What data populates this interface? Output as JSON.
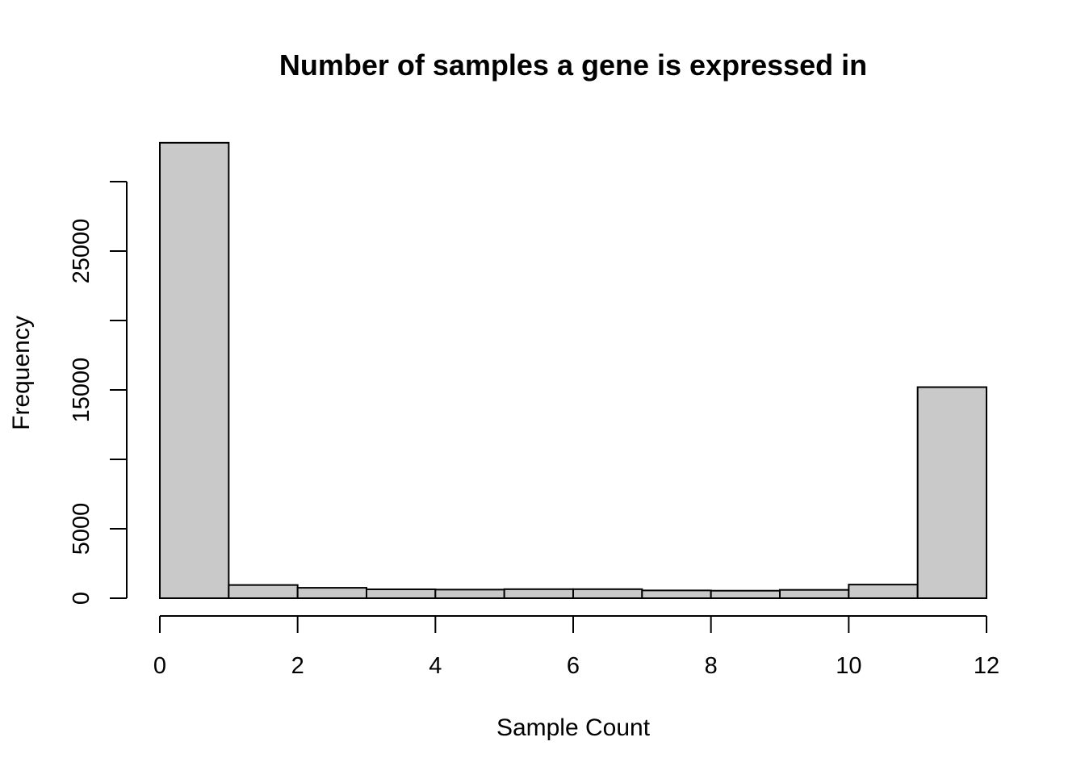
{
  "chart_data": {
    "type": "bar",
    "title": "Number of samples a gene is expressed in",
    "xlabel": "Sample Count",
    "ylabel": "Frequency",
    "bin_edges": [
      0,
      1,
      2,
      3,
      4,
      5,
      6,
      7,
      8,
      9,
      10,
      11,
      12
    ],
    "values": [
      32800,
      950,
      750,
      640,
      620,
      650,
      650,
      560,
      540,
      600,
      980,
      15200
    ],
    "xlim": [
      0,
      12
    ],
    "ylim": [
      0,
      33000
    ],
    "x_ticks": [
      0,
      2,
      4,
      6,
      8,
      10,
      12
    ],
    "y_ticks": [
      0,
      5000,
      10000,
      15000,
      20000,
      25000,
      30000
    ],
    "y_tick_labels": [
      "0",
      "5000",
      "",
      "15000",
      "",
      "25000",
      ""
    ],
    "bar_fill": "#c9c9c9",
    "grid": false
  }
}
